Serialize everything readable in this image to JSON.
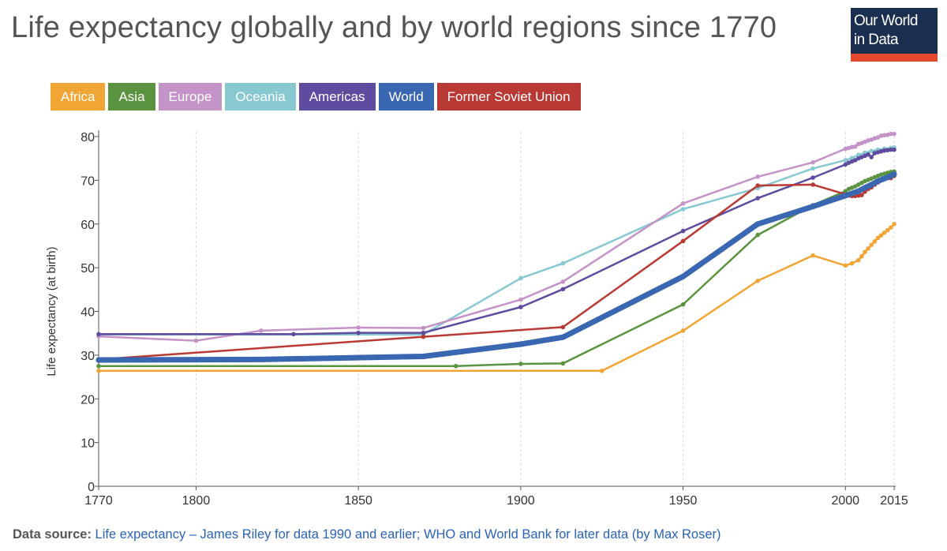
{
  "header": {
    "title": "Life expectancy globally and by world regions since 1770",
    "logo_line1": "Our World",
    "logo_line2": "in Data"
  },
  "footer": {
    "source_label": "Data source:",
    "source_text": "Life expectancy – James Riley for data 1990 and earlier; WHO and World Bank for later data (by Max Roser)"
  },
  "chart_data": {
    "type": "line",
    "title": "Life expectancy globally and by world regions since 1770",
    "xlabel": "",
    "ylabel": "Life expectancy (at birth)",
    "xlim": [
      1770,
      2015
    ],
    "ylim": [
      0,
      80
    ],
    "xticks": [
      1770,
      1800,
      1850,
      1900,
      1950,
      2000,
      2015
    ],
    "yticks": [
      0,
      10,
      20,
      30,
      40,
      50,
      60,
      70,
      80
    ],
    "grid": "vertical dashed",
    "legend_position": "top",
    "series": [
      {
        "name": "Africa",
        "color": "#f0a535",
        "width": 2.5,
        "points": [
          [
            1770,
            26.4
          ],
          [
            1925,
            26.4
          ],
          [
            1950,
            35.6
          ],
          [
            1973,
            47
          ],
          [
            1990,
            52.8
          ],
          [
            2000,
            50.5
          ],
          [
            2002,
            51
          ],
          [
            2004,
            51.7
          ],
          [
            2005,
            52.6
          ],
          [
            2006,
            53.6
          ],
          [
            2007,
            54.4
          ],
          [
            2008,
            55.2
          ],
          [
            2009,
            56
          ],
          [
            2010,
            56.8
          ],
          [
            2011,
            57.4
          ],
          [
            2012,
            58
          ],
          [
            2013,
            58.6
          ],
          [
            2014,
            59.2
          ],
          [
            2015,
            60
          ]
        ]
      },
      {
        "name": "Asia",
        "color": "#5a9440",
        "width": 2.5,
        "points": [
          [
            1770,
            27.5
          ],
          [
            1880,
            27.5
          ],
          [
            1900,
            28
          ],
          [
            1913,
            28.1
          ],
          [
            1950,
            41.6
          ],
          [
            1973,
            57.5
          ],
          [
            1990,
            64.3
          ],
          [
            2000,
            67.5
          ],
          [
            2001,
            68
          ],
          [
            2002,
            68.3
          ],
          [
            2003,
            68.6
          ],
          [
            2004,
            69
          ],
          [
            2005,
            69.4
          ],
          [
            2006,
            69.8
          ],
          [
            2007,
            70.1
          ],
          [
            2008,
            70.4
          ],
          [
            2009,
            70.7
          ],
          [
            2010,
            71
          ],
          [
            2011,
            71.3
          ],
          [
            2012,
            71.5
          ],
          [
            2013,
            71.7
          ],
          [
            2014,
            71.9
          ],
          [
            2015,
            72
          ]
        ]
      },
      {
        "name": "Europe",
        "color": "#c493c8",
        "width": 2.5,
        "points": [
          [
            1770,
            34.3
          ],
          [
            1800,
            33.3
          ],
          [
            1820,
            35.6
          ],
          [
            1850,
            36.3
          ],
          [
            1870,
            36.2
          ],
          [
            1900,
            42.7
          ],
          [
            1913,
            46.8
          ],
          [
            1950,
            64.7
          ],
          [
            1973,
            70.8
          ],
          [
            1990,
            74.1
          ],
          [
            2000,
            77.2
          ],
          [
            2001,
            77.4
          ],
          [
            2002,
            77.6
          ],
          [
            2003,
            77.7
          ],
          [
            2004,
            78.3
          ],
          [
            2005,
            78.5
          ],
          [
            2006,
            78.8
          ],
          [
            2007,
            79.1
          ],
          [
            2008,
            79.3
          ],
          [
            2009,
            79.6
          ],
          [
            2010,
            79.8
          ],
          [
            2011,
            80.2
          ],
          [
            2012,
            80.3
          ],
          [
            2013,
            80.4
          ],
          [
            2014,
            80.6
          ],
          [
            2015,
            80.6
          ]
        ]
      },
      {
        "name": "Oceania",
        "color": "#88c8d0",
        "width": 2.5,
        "points": [
          [
            1770,
            34.7
          ],
          [
            1870,
            34.7
          ],
          [
            1900,
            47.6
          ],
          [
            1913,
            51
          ],
          [
            1950,
            63.4
          ],
          [
            1973,
            68.2
          ],
          [
            1990,
            72.7
          ],
          [
            2000,
            74.6
          ],
          [
            2002,
            75.1
          ],
          [
            2004,
            75.8
          ],
          [
            2006,
            76.3
          ],
          [
            2008,
            76.7
          ],
          [
            2010,
            77
          ],
          [
            2012,
            77.2
          ],
          [
            2014,
            77.4
          ],
          [
            2015,
            77.5
          ]
        ]
      },
      {
        "name": "Americas",
        "color": "#5f4b9f",
        "width": 2.5,
        "points": [
          [
            1770,
            34.8
          ],
          [
            1830,
            34.8
          ],
          [
            1850,
            35.1
          ],
          [
            1870,
            35.1
          ],
          [
            1900,
            41
          ],
          [
            1913,
            45.1
          ],
          [
            1950,
            58.4
          ],
          [
            1973,
            65.9
          ],
          [
            1990,
            70.6
          ],
          [
            2000,
            73.6
          ],
          [
            2001,
            74
          ],
          [
            2002,
            74.3
          ],
          [
            2003,
            74.6
          ],
          [
            2004,
            75
          ],
          [
            2005,
            75.3
          ],
          [
            2006,
            75.6
          ],
          [
            2007,
            75.9
          ],
          [
            2008,
            75.3
          ],
          [
            2009,
            76.2
          ],
          [
            2010,
            76.4
          ],
          [
            2011,
            76.6
          ],
          [
            2012,
            76.8
          ],
          [
            2013,
            76.9
          ],
          [
            2014,
            77
          ],
          [
            2015,
            77
          ]
        ]
      },
      {
        "name": "World",
        "color": "#3a67b1",
        "width": 7,
        "points": [
          [
            1770,
            28.9
          ],
          [
            1820,
            29
          ],
          [
            1870,
            29.7
          ],
          [
            1900,
            32.5
          ],
          [
            1913,
            34.1
          ],
          [
            1950,
            48
          ],
          [
            1973,
            60
          ],
          [
            1990,
            64
          ],
          [
            2000,
            66.5
          ],
          [
            2002,
            67
          ],
          [
            2004,
            67.5
          ],
          [
            2006,
            68.3
          ],
          [
            2008,
            69
          ],
          [
            2010,
            69.8
          ],
          [
            2012,
            70.4
          ],
          [
            2014,
            71
          ],
          [
            2015,
            71.4
          ]
        ]
      },
      {
        "name": "Former Soviet Union",
        "color": "#b93a35",
        "width": 2.5,
        "points": [
          [
            1770,
            29
          ],
          [
            1870,
            34.2
          ],
          [
            1913,
            36.4
          ],
          [
            1950,
            56.1
          ],
          [
            1973,
            68.8
          ],
          [
            1990,
            69
          ],
          [
            2000,
            66.8
          ],
          [
            2001,
            66.5
          ],
          [
            2002,
            66.4
          ],
          [
            2003,
            66.4
          ],
          [
            2004,
            66.5
          ],
          [
            2005,
            66.6
          ],
          [
            2006,
            67.4
          ],
          [
            2007,
            68
          ],
          [
            2008,
            68.4
          ],
          [
            2009,
            69
          ],
          [
            2010,
            69.5
          ],
          [
            2011,
            70
          ],
          [
            2012,
            70.3
          ],
          [
            2013,
            70.5
          ],
          [
            2014,
            70.5
          ],
          [
            2015,
            71
          ]
        ]
      }
    ]
  }
}
